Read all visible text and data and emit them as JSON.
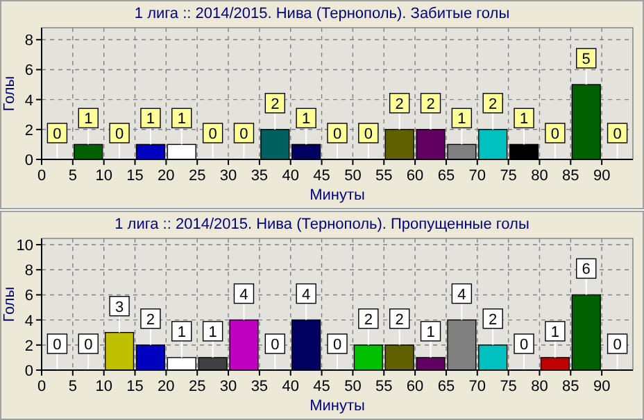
{
  "chart_data": [
    {
      "type": "histogram",
      "title": "1 лига :: 2014/2015. Нива (Тернополь). Забитые голы",
      "xlabel": "Минуты",
      "ylabel": "Голы",
      "bins": [
        0,
        5,
        10,
        15,
        20,
        25,
        30,
        35,
        40,
        45,
        50,
        55,
        60,
        65,
        70,
        75,
        80,
        85,
        90,
        95
      ],
      "values": [
        0,
        1,
        0,
        1,
        1,
        0,
        0,
        2,
        1,
        0,
        0,
        2,
        2,
        1,
        2,
        1,
        0,
        5,
        0
      ],
      "colors": [
        "#c00000",
        "#006000",
        "#c0c000",
        "#0000c0",
        "#ffffff",
        "#404040",
        "#c000c0",
        "#006060",
        "#000060",
        "#400000",
        "#00c000",
        "#606000",
        "#600060",
        "#808080",
        "#00c0c0",
        "#000000",
        "#c00000",
        "#006000",
        "#c0c000"
      ],
      "xlim": [
        0,
        95
      ],
      "xticks": [
        0,
        5,
        10,
        15,
        20,
        25,
        30,
        35,
        40,
        45,
        50,
        55,
        60,
        65,
        70,
        75,
        80,
        85,
        90
      ],
      "ylim": [
        0,
        8.8
      ],
      "yticks": [
        0,
        2,
        4,
        6,
        8
      ],
      "grid": true,
      "data_labels": true
    },
    {
      "type": "histogram",
      "title": "1 лига :: 2014/2015. Нива (Тернополь). Пропущенные голы",
      "xlabel": "Минуты",
      "ylabel": "Голы",
      "bins": [
        0,
        5,
        10,
        15,
        20,
        25,
        30,
        35,
        40,
        45,
        50,
        55,
        60,
        65,
        70,
        75,
        80,
        85,
        90,
        95
      ],
      "values": [
        0,
        0,
        3,
        2,
        1,
        1,
        4,
        0,
        4,
        0,
        2,
        2,
        1,
        4,
        2,
        0,
        1,
        6,
        0
      ],
      "colors": [
        "#c00000",
        "#004000",
        "#c0c000",
        "#0000c0",
        "#ffffff",
        "#404040",
        "#c000c0",
        "#006060",
        "#000060",
        "#400000",
        "#00c000",
        "#606000",
        "#600060",
        "#808080",
        "#00c0c0",
        "#000000",
        "#c00000",
        "#006000",
        "#c0c000"
      ],
      "xlim": [
        0,
        95
      ],
      "xticks": [
        0,
        5,
        10,
        15,
        20,
        25,
        30,
        35,
        40,
        45,
        50,
        55,
        60,
        65,
        70,
        75,
        80,
        85,
        90
      ],
      "ylim": [
        0,
        10.5
      ],
      "yticks": [
        0,
        2,
        4,
        6,
        8,
        10
      ],
      "grid": true,
      "data_labels": true
    }
  ]
}
